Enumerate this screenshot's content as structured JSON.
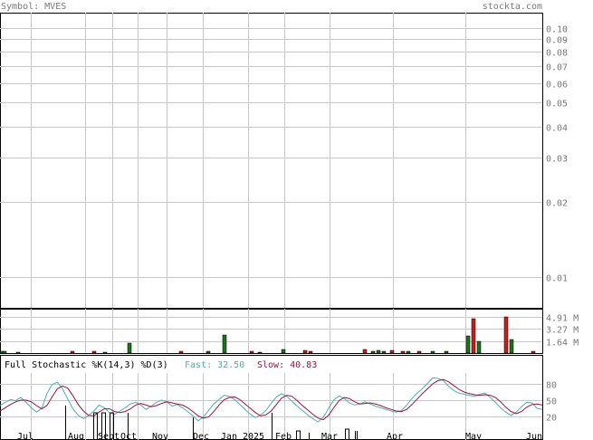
{
  "header": {
    "symbol_label": "Symbol: MVES",
    "site": "stockta.com"
  },
  "colors": {
    "up": "#1f6f1f",
    "down": "#c81e1e",
    "fast": "#4cb0b0",
    "slow": "#a01040",
    "grid": "#c8c8c8",
    "header_text": "#7a7a7a"
  },
  "chart_data": [
    {
      "type": "line",
      "panel": "price",
      "scale": "log",
      "ylim": [
        0.0075,
        0.115
      ],
      "y_ticks": [
        0.1,
        0.09,
        0.08,
        0.07,
        0.06,
        0.05,
        0.04,
        0.03,
        0.02,
        0.01
      ],
      "y_tick_labels": [
        "0.10",
        "0.09",
        "0.08",
        "0.07",
        "0.06",
        "0.05",
        "0.04",
        "0.03",
        "0.02",
        "0.01"
      ],
      "x_labels": [
        "Jul",
        "Aug",
        "Sept",
        "Oct",
        "Nov",
        "Dec",
        "Jan 2025",
        "Feb",
        "Mar",
        "Apr",
        "May",
        "Jun"
      ],
      "grid": true,
      "series": []
    },
    {
      "type": "bar",
      "panel": "volume",
      "unit": "M",
      "y_tick_labels": [
        "4.91 M",
        "3.27 M",
        "1.64 M"
      ],
      "y_ticks": [
        4.91,
        3.27,
        1.64
      ],
      "ylim": [
        0,
        6.0
      ],
      "bars": [
        {
          "x": 0.0,
          "v": 0.2,
          "dir": "up"
        },
        {
          "x": 0.5,
          "v": 0.2,
          "dir": "up"
        },
        {
          "x": 3.0,
          "v": 0.15,
          "dir": "down"
        },
        {
          "x": 13.0,
          "v": 0.3,
          "dir": "down"
        },
        {
          "x": 17.0,
          "v": 0.25,
          "dir": "down"
        },
        {
          "x": 19.0,
          "v": 0.15,
          "dir": "up"
        },
        {
          "x": 23.5,
          "v": 1.3,
          "dir": "up"
        },
        {
          "x": 33.0,
          "v": 0.2,
          "dir": "down"
        },
        {
          "x": 38.0,
          "v": 0.3,
          "dir": "up"
        },
        {
          "x": 41.0,
          "v": 2.45,
          "dir": "up"
        },
        {
          "x": 46.0,
          "v": 0.2,
          "dir": "down"
        },
        {
          "x": 47.5,
          "v": 0.15,
          "dir": "down"
        },
        {
          "x": 52.0,
          "v": 0.5,
          "dir": "up"
        },
        {
          "x": 56.0,
          "v": 0.4,
          "dir": "down"
        },
        {
          "x": 57.0,
          "v": 0.3,
          "dir": "down"
        },
        {
          "x": 67.0,
          "v": 0.45,
          "dir": "down"
        },
        {
          "x": 68.5,
          "v": 0.3,
          "dir": "up"
        },
        {
          "x": 69.5,
          "v": 0.35,
          "dir": "up"
        },
        {
          "x": 70.5,
          "v": 0.2,
          "dir": "up"
        },
        {
          "x": 72.0,
          "v": 0.4,
          "dir": "down"
        },
        {
          "x": 74.0,
          "v": 0.3,
          "dir": "down"
        },
        {
          "x": 75.0,
          "v": 0.25,
          "dir": "up"
        },
        {
          "x": 77.0,
          "v": 0.2,
          "dir": "down"
        },
        {
          "x": 79.5,
          "v": 0.3,
          "dir": "up"
        },
        {
          "x": 82.0,
          "v": 0.2,
          "dir": "up"
        },
        {
          "x": 86.0,
          "v": 2.35,
          "dir": "up"
        },
        {
          "x": 87.0,
          "v": 4.6,
          "dir": "down"
        },
        {
          "x": 88.0,
          "v": 1.55,
          "dir": "up"
        },
        {
          "x": 93.0,
          "v": 4.9,
          "dir": "down"
        },
        {
          "x": 94.0,
          "v": 1.85,
          "dir": "up"
        },
        {
          "x": 98.0,
          "v": 0.2,
          "dir": "down"
        }
      ]
    },
    {
      "type": "line",
      "panel": "stochastic",
      "title": "Full Stochastic %K(14,3) %D(3)",
      "fast_label": "Fast: 32.50",
      "slow_label": "Slow: 40.83",
      "ylim": [
        0,
        100
      ],
      "y_ticks": [
        80,
        50,
        20
      ],
      "y_tick_labels": [
        "80",
        "50",
        "20"
      ],
      "series": [
        {
          "name": "Fast",
          "values": [
            40,
            46,
            51,
            49,
            55,
            46,
            36,
            28,
            35,
            62,
            79,
            83,
            71,
            52,
            34,
            22,
            16,
            22,
            30,
            41,
            36,
            27,
            24,
            30,
            36,
            43,
            46,
            41,
            33,
            39,
            46,
            50,
            47,
            39,
            42,
            36,
            29,
            21,
            12,
            19,
            31,
            43,
            51,
            59,
            57,
            51,
            42,
            33,
            24,
            18,
            23,
            31,
            44,
            56,
            62,
            57,
            48,
            39,
            31,
            23,
            16,
            10,
            18,
            35,
            50,
            58,
            53,
            45,
            41,
            43,
            47,
            43,
            39,
            36,
            33,
            30,
            28,
            31,
            41,
            53,
            63,
            71,
            81,
            91,
            90,
            86,
            76,
            68,
            63,
            61,
            59,
            57,
            61,
            63,
            55,
            46,
            36,
            28,
            22,
            28,
            38,
            46,
            45,
            35,
            33
          ]
        },
        {
          "name": "Slow",
          "values": [
            30,
            36,
            42,
            47,
            50,
            50,
            47,
            40,
            34,
            40,
            56,
            71,
            76,
            72,
            58,
            42,
            30,
            22,
            21,
            28,
            34,
            34,
            29,
            27,
            29,
            34,
            41,
            44,
            41,
            38,
            40,
            44,
            47,
            45,
            43,
            41,
            36,
            29,
            21,
            17,
            19,
            29,
            41,
            51,
            55,
            56,
            51,
            43,
            35,
            27,
            21,
            23,
            30,
            42,
            54,
            59,
            57,
            49,
            40,
            32,
            24,
            17,
            14,
            22,
            36,
            49,
            55,
            53,
            47,
            43,
            44,
            45,
            43,
            40,
            36,
            33,
            30,
            29,
            33,
            42,
            52,
            62,
            71,
            80,
            86,
            88,
            84,
            77,
            70,
            65,
            62,
            60,
            59,
            60,
            59,
            55,
            47,
            37,
            29,
            25,
            29,
            37,
            42,
            43,
            41
          ]
        }
      ],
      "markers": [
        {
          "x": 12.0,
          "dir": "down",
          "len": 38
        },
        {
          "x": 17.5,
          "dir": "up",
          "len": 30
        },
        {
          "x": 19.0,
          "dir": "up",
          "len": 30
        },
        {
          "x": 20.5,
          "dir": "up",
          "len": 30
        },
        {
          "x": 23.5,
          "dir": "down",
          "len": 30
        },
        {
          "x": 35.5,
          "dir": "down",
          "len": 25
        },
        {
          "x": 50.0,
          "dir": "down",
          "len": 30
        },
        {
          "x": 55.0,
          "dir": "up",
          "len": 10
        },
        {
          "x": 57.0,
          "dir": "down",
          "len": 8
        },
        {
          "x": 64.0,
          "dir": "up",
          "len": 12
        },
        {
          "x": 65.5,
          "dir": "down",
          "len": 10
        },
        {
          "x": 65.8,
          "dir": "down",
          "len": 10
        }
      ]
    }
  ]
}
